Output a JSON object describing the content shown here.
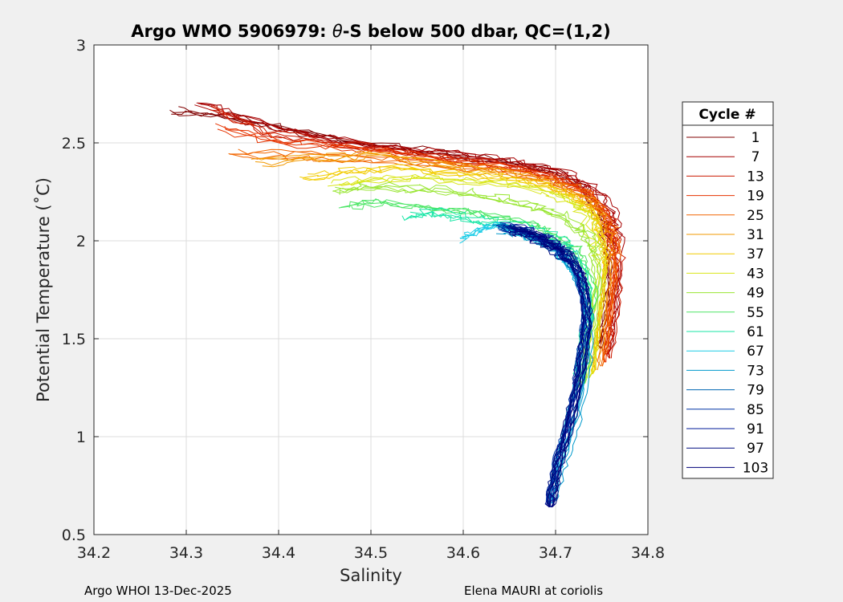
{
  "chart_data": {
    "type": "line",
    "title_prefix": "Argo WMO 5906979: ",
    "title_symbol": "θ",
    "title_suffix": "-S below 500 dbar,  QC=(1,2)",
    "xlabel": "Salinity",
    "ylabel": "Potential Temperature (˚C)",
    "xlim": [
      34.2,
      34.8
    ],
    "ylim": [
      0.5,
      3
    ],
    "x_ticks": [
      "34.2",
      "34.3",
      "34.4",
      "34.5",
      "34.6",
      "34.7",
      "34.8"
    ],
    "y_ticks": [
      "0.5",
      "1",
      "1.5",
      "2",
      "2.5",
      "3"
    ],
    "grid": true,
    "legend": {
      "title": "Cycle #",
      "placement": "outside-right",
      "entries": [
        {
          "label": "1",
          "color": "#800000"
        },
        {
          "label": "7",
          "color": "#a60000"
        },
        {
          "label": "13",
          "color": "#cc1a00"
        },
        {
          "label": "19",
          "color": "#e63300"
        },
        {
          "label": "25",
          "color": "#f26600"
        },
        {
          "label": "31",
          "color": "#f29900"
        },
        {
          "label": "37",
          "color": "#f2cc00"
        },
        {
          "label": "43",
          "color": "#d9e61a"
        },
        {
          "label": "49",
          "color": "#99e633"
        },
        {
          "label": "55",
          "color": "#4de666"
        },
        {
          "label": "61",
          "color": "#1ae6a6"
        },
        {
          "label": "67",
          "color": "#1acce6"
        },
        {
          "label": "73",
          "color": "#0099cc"
        },
        {
          "label": "79",
          "color": "#0066b3"
        },
        {
          "label": "85",
          "color": "#0033a6"
        },
        {
          "label": "91",
          "color": "#001a99"
        },
        {
          "label": "97",
          "color": "#000d80"
        },
        {
          "label": "103",
          "color": "#00007a"
        }
      ]
    },
    "series": [
      {
        "color": "#800000",
        "x": [
          34.29,
          34.35,
          34.42,
          34.5,
          34.58,
          34.65,
          34.7,
          34.73,
          34.75,
          34.76,
          34.76,
          34.755,
          34.75
        ],
        "y": [
          2.66,
          2.63,
          2.56,
          2.49,
          2.44,
          2.4,
          2.35,
          2.28,
          2.15,
          2.0,
          1.8,
          1.6,
          1.45
        ]
      },
      {
        "color": "#a60000",
        "x": [
          34.31,
          34.37,
          34.44,
          34.52,
          34.6,
          34.66,
          34.71,
          34.74,
          34.76,
          34.765,
          34.765,
          34.76,
          34.755
        ],
        "y": [
          2.7,
          2.6,
          2.52,
          2.47,
          2.43,
          2.39,
          2.33,
          2.26,
          2.13,
          1.98,
          1.78,
          1.58,
          1.42
        ]
      },
      {
        "color": "#cc1a00",
        "x": [
          34.33,
          34.39,
          34.46,
          34.54,
          34.61,
          34.67,
          34.71,
          34.74,
          34.76,
          34.77,
          34.77,
          34.765,
          34.76
        ],
        "y": [
          2.68,
          2.55,
          2.5,
          2.45,
          2.41,
          2.37,
          2.31,
          2.24,
          2.11,
          1.96,
          1.76,
          1.56,
          1.4
        ]
      },
      {
        "color": "#e63300",
        "x": [
          34.34,
          34.41,
          34.48,
          34.56,
          34.62,
          34.68,
          34.72,
          34.745,
          34.76,
          34.77,
          34.765,
          34.76,
          34.755
        ],
        "y": [
          2.58,
          2.5,
          2.48,
          2.43,
          2.39,
          2.35,
          2.29,
          2.22,
          2.09,
          1.94,
          1.74,
          1.54,
          1.38
        ]
      },
      {
        "color": "#f26600",
        "x": [
          34.35,
          34.42,
          34.5,
          34.57,
          34.63,
          34.68,
          34.72,
          34.745,
          34.76,
          34.765,
          34.76,
          34.755,
          34.75
        ],
        "y": [
          2.45,
          2.44,
          2.42,
          2.4,
          2.37,
          2.33,
          2.27,
          2.2,
          2.07,
          1.92,
          1.72,
          1.52,
          1.36
        ]
      },
      {
        "color": "#f29900",
        "x": [
          34.38,
          34.44,
          34.51,
          34.58,
          34.64,
          34.69,
          34.72,
          34.745,
          34.755,
          34.76,
          34.755,
          34.75,
          34.745
        ],
        "y": [
          2.4,
          2.42,
          2.44,
          2.39,
          2.35,
          2.31,
          2.25,
          2.18,
          2.05,
          1.9,
          1.7,
          1.5,
          1.34
        ]
      },
      {
        "color": "#f2cc00",
        "x": [
          34.43,
          34.48,
          34.53,
          34.59,
          34.64,
          34.69,
          34.72,
          34.74,
          34.75,
          34.755,
          34.75,
          34.745,
          34.74
        ],
        "y": [
          2.33,
          2.36,
          2.38,
          2.35,
          2.33,
          2.29,
          2.23,
          2.16,
          2.03,
          1.88,
          1.68,
          1.48,
          1.32
        ]
      },
      {
        "color": "#d9e61a",
        "x": [
          34.46,
          34.5,
          34.55,
          34.6,
          34.65,
          34.69,
          34.72,
          34.735,
          34.745,
          34.75,
          34.745,
          34.74,
          34.735
        ],
        "y": [
          2.3,
          2.32,
          2.33,
          2.31,
          2.3,
          2.26,
          2.2,
          2.13,
          2.0,
          1.85,
          1.65,
          1.46,
          1.3
        ]
      },
      {
        "color": "#99e633",
        "x": [
          34.46,
          34.5,
          34.55,
          34.6,
          34.64,
          34.68,
          34.71,
          34.73,
          34.74,
          34.745,
          34.74,
          34.735,
          34.73
        ],
        "y": [
          2.26,
          2.28,
          2.27,
          2.25,
          2.22,
          2.18,
          2.12,
          2.05,
          1.95,
          1.8,
          1.6,
          1.42,
          1.27
        ]
      },
      {
        "color": "#4de666",
        "x": [
          34.47,
          34.51,
          34.56,
          34.6,
          34.64,
          34.68,
          34.7,
          34.72,
          34.73,
          34.74,
          34.735,
          34.73,
          34.725
        ],
        "y": [
          2.18,
          2.2,
          2.17,
          2.15,
          2.12,
          2.08,
          2.02,
          1.96,
          1.88,
          1.75,
          1.58,
          1.4,
          1.25
        ]
      },
      {
        "color": "#1ae6a6",
        "x": [
          34.54,
          34.57,
          34.6,
          34.63,
          34.66,
          34.69,
          34.71,
          34.72,
          34.73,
          34.735,
          34.735,
          34.73,
          34.725
        ],
        "y": [
          2.13,
          2.15,
          2.12,
          2.1,
          2.07,
          2.03,
          1.98,
          1.92,
          1.85,
          1.75,
          1.6,
          1.45,
          1.3
        ]
      },
      {
        "color": "#1acce6",
        "x": [
          34.6,
          34.62,
          34.64,
          34.66,
          34.68,
          34.7,
          34.71,
          34.72,
          34.73,
          34.735,
          34.73,
          34.72,
          34.71,
          34.7,
          34.695
        ],
        "y": [
          2.0,
          2.05,
          2.07,
          2.03,
          2.0,
          1.96,
          1.9,
          1.84,
          1.76,
          1.6,
          1.4,
          1.2,
          1.0,
          0.8,
          0.68
        ]
      },
      {
        "color": "#0099cc",
        "x": [
          34.64,
          34.66,
          34.68,
          34.7,
          34.71,
          34.72,
          34.73,
          34.735,
          34.735,
          34.73,
          34.72,
          34.71,
          34.7,
          34.695
        ],
        "y": [
          2.06,
          2.04,
          2.0,
          1.96,
          1.9,
          1.83,
          1.74,
          1.6,
          1.45,
          1.25,
          1.05,
          0.9,
          0.75,
          0.66
        ]
      },
      {
        "color": "#0066b3",
        "x": [
          34.64,
          34.66,
          34.68,
          34.7,
          34.715,
          34.725,
          34.73,
          34.735,
          34.73,
          34.725,
          34.715,
          34.705,
          34.7,
          34.695
        ],
        "y": [
          2.07,
          2.05,
          2.01,
          1.97,
          1.91,
          1.84,
          1.75,
          1.6,
          1.45,
          1.25,
          1.05,
          0.9,
          0.78,
          0.66
        ]
      },
      {
        "color": "#0033a6",
        "x": [
          34.645,
          34.665,
          34.685,
          34.7,
          34.715,
          34.725,
          34.73,
          34.735,
          34.73,
          34.725,
          34.715,
          34.705,
          34.7,
          34.695
        ],
        "y": [
          2.08,
          2.06,
          2.02,
          1.98,
          1.92,
          1.85,
          1.76,
          1.62,
          1.46,
          1.26,
          1.06,
          0.9,
          0.78,
          0.65
        ]
      },
      {
        "color": "#001a99",
        "x": [
          34.65,
          34.67,
          34.69,
          34.705,
          34.72,
          34.728,
          34.733,
          34.735,
          34.732,
          34.725,
          34.715,
          34.705,
          34.7,
          34.695
        ],
        "y": [
          2.07,
          2.05,
          2.01,
          1.97,
          1.9,
          1.83,
          1.74,
          1.6,
          1.44,
          1.25,
          1.05,
          0.9,
          0.77,
          0.64
        ]
      },
      {
        "color": "#000d80",
        "x": [
          34.65,
          34.67,
          34.69,
          34.705,
          34.72,
          34.728,
          34.733,
          34.735,
          34.73,
          34.724,
          34.714,
          34.705,
          34.699,
          34.695
        ],
        "y": [
          2.06,
          2.04,
          2.0,
          1.95,
          1.89,
          1.82,
          1.73,
          1.59,
          1.43,
          1.24,
          1.04,
          0.89,
          0.76,
          0.64
        ]
      },
      {
        "color": "#00007a",
        "x": [
          34.655,
          34.675,
          34.692,
          34.707,
          34.72,
          34.728,
          34.732,
          34.734,
          34.73,
          34.723,
          34.713,
          34.704,
          34.698,
          34.694
        ],
        "y": [
          2.05,
          2.03,
          1.99,
          1.94,
          1.88,
          1.81,
          1.72,
          1.58,
          1.42,
          1.23,
          1.03,
          0.88,
          0.75,
          0.64
        ]
      }
    ]
  },
  "footer": {
    "left": "Argo WHOI 13-Dec-2025",
    "right": "Elena MAURI at coriolis"
  }
}
